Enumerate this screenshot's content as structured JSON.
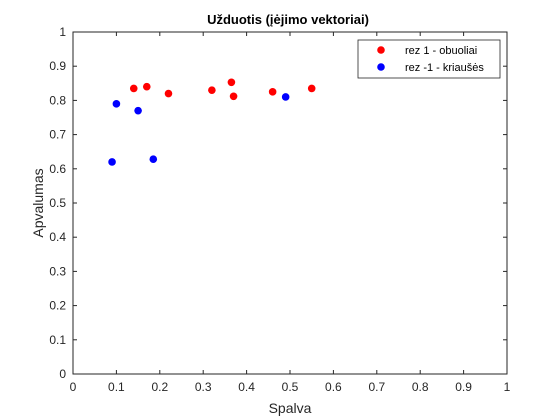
{
  "chart_data": {
    "type": "scatter",
    "title": "Užduotis (įėjimo vektoriai)",
    "xlabel": "Spalva",
    "ylabel": "Apvalumas",
    "xlim": [
      0,
      1
    ],
    "ylim": [
      0,
      1
    ],
    "xticks": [
      "0",
      "0.1",
      "0.2",
      "0.3",
      "0.4",
      "0.5",
      "0.6",
      "0.7",
      "0.8",
      "0.9",
      "1"
    ],
    "yticks": [
      "0",
      "0.1",
      "0.2",
      "0.3",
      "0.4",
      "0.5",
      "0.6",
      "0.7",
      "0.8",
      "0.9",
      "1"
    ],
    "grid": false,
    "legend_position": "top-right",
    "series": [
      {
        "name": "rez 1 - obuoliai",
        "color": "#ff0000",
        "x": [
          0.14,
          0.17,
          0.22,
          0.32,
          0.365,
          0.37,
          0.46,
          0.55
        ],
        "y": [
          0.835,
          0.84,
          0.82,
          0.83,
          0.853,
          0.812,
          0.825,
          0.835
        ]
      },
      {
        "name": "rez -1 - kriaušės",
        "color": "#0000ff",
        "x": [
          0.09,
          0.1,
          0.15,
          0.185,
          0.49
        ],
        "y": [
          0.62,
          0.79,
          0.77,
          0.628,
          0.81
        ]
      }
    ]
  }
}
